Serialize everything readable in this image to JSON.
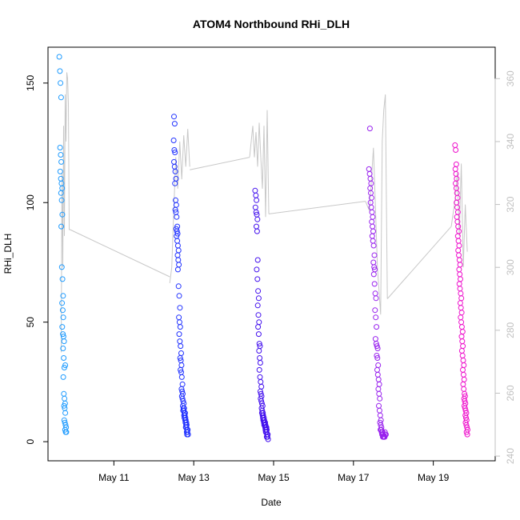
{
  "chart_data": {
    "type": "scatter",
    "title": "ATOM4 Northbound RHi_DLH",
    "xlabel": "Date",
    "ylabel": "RHi_DLH",
    "x_unit": "day of May",
    "xlim": [
      9.35,
      20.55
    ],
    "ylim": [
      -8,
      165
    ],
    "y2lim": [
      238.5,
      370
    ],
    "x_ticks": [
      {
        "value": 11,
        "label": "May 11"
      },
      {
        "value": 13,
        "label": "May 13"
      },
      {
        "value": 15,
        "label": "May 15"
      },
      {
        "value": 17,
        "label": "May 17"
      },
      {
        "value": 19,
        "label": "May 19"
      }
    ],
    "y_ticks": [
      {
        "value": 0,
        "label": "0"
      },
      {
        "value": 50,
        "label": "50"
      },
      {
        "value": 100,
        "label": "100"
      },
      {
        "value": 150,
        "label": "150"
      }
    ],
    "y2_ticks": [
      {
        "value": 240,
        "label": "240"
      },
      {
        "value": 260,
        "label": "260"
      },
      {
        "value": 280,
        "label": "280"
      },
      {
        "value": 300,
        "label": "300"
      },
      {
        "value": 320,
        "label": "320"
      },
      {
        "value": 340,
        "label": "340"
      },
      {
        "value": 360,
        "label": "360"
      }
    ],
    "grid": false,
    "legend": "none",
    "point_colors": [
      "#1e9bff",
      "#2233ff",
      "#4411ee",
      "#9922ee",
      "#ee11cc"
    ],
    "line_color": "#c8c8c8",
    "flights": [
      {
        "x_start": 9.65,
        "x_end": 9.8,
        "values": [
          161,
          155,
          150,
          144,
          123,
          120,
          117,
          113,
          110,
          108,
          106,
          104,
          101,
          95,
          90,
          73,
          68,
          61,
          58,
          55,
          52,
          48,
          45,
          44,
          42,
          39,
          35,
          31,
          27,
          20,
          18,
          16,
          15,
          14,
          12,
          9,
          8,
          7,
          6,
          5,
          4,
          4,
          32
        ]
      },
      {
        "x_start": 12.5,
        "x_end": 12.85,
        "values": [
          136,
          133,
          126,
          122,
          121,
          117,
          115,
          113,
          110,
          108,
          101,
          99,
          97,
          96,
          94,
          90,
          89,
          88,
          87,
          86,
          84,
          82,
          80,
          78,
          76,
          74,
          72,
          65,
          61,
          56,
          52,
          50,
          48,
          45,
          42,
          40,
          37,
          35,
          34,
          32,
          30,
          29,
          27,
          24,
          22,
          21,
          20,
          19,
          18,
          17,
          16,
          15,
          14,
          14,
          13,
          13,
          12,
          12,
          11,
          11,
          10,
          10,
          9,
          9,
          8,
          8,
          7,
          7,
          6,
          6,
          5,
          5,
          4,
          4,
          3,
          3
        ]
      },
      {
        "x_start": 14.55,
        "x_end": 14.85,
        "values": [
          105,
          103,
          101,
          98,
          96,
          95,
          93,
          90,
          88,
          76,
          72,
          68,
          63,
          60,
          57,
          53,
          50,
          48,
          45,
          41,
          40,
          38,
          35,
          33,
          30,
          27,
          25,
          23,
          21,
          20,
          19,
          18,
          17,
          16,
          15,
          14,
          13,
          12,
          12,
          11,
          11,
          10,
          10,
          9,
          9,
          9,
          8,
          8,
          8,
          7,
          7,
          7,
          7,
          6,
          6,
          6,
          5,
          5,
          5,
          4,
          4,
          3,
          3,
          2,
          2,
          1
        ]
      },
      {
        "x_start": 17.4,
        "x_end": 17.8,
        "values": [
          131,
          114,
          112,
          110,
          108,
          106,
          104,
          102,
          100,
          98,
          96,
          94,
          92,
          90,
          88,
          86,
          84,
          82,
          78,
          75,
          73,
          72,
          70,
          66,
          62,
          60,
          55,
          52,
          48,
          43,
          41,
          40,
          39,
          36,
          35,
          32,
          30,
          28,
          26,
          24,
          22,
          20,
          18,
          15,
          13,
          11,
          9,
          8,
          7,
          6,
          5,
          5,
          4,
          4,
          4,
          3,
          3,
          3,
          2,
          2,
          2,
          2,
          2,
          2,
          2,
          2,
          3,
          3,
          4
        ]
      },
      {
        "x_start": 19.55,
        "x_end": 19.85,
        "values": [
          124,
          122,
          116,
          114,
          112,
          110,
          108,
          106,
          104,
          102,
          100,
          98,
          96,
          94,
          92,
          90,
          88,
          86,
          84,
          82,
          80,
          78,
          76,
          74,
          72,
          70,
          68,
          66,
          64,
          62,
          60,
          58,
          56,
          54,
          52,
          50,
          48,
          46,
          44,
          42,
          40,
          38,
          36,
          34,
          32,
          30,
          28,
          26,
          24,
          22,
          20,
          19,
          18,
          17,
          16,
          15,
          14,
          13,
          12,
          11,
          10,
          9,
          8,
          7,
          6,
          5,
          4,
          3
        ]
      }
    ],
    "line_series": {
      "name": "",
      "axis": "right",
      "segments": [
        {
          "x": [
            9.68,
            9.7,
            9.72,
            9.74,
            9.76,
            9.78,
            9.8,
            9.82,
            9.84,
            9.86,
            9.88,
            9.9
          ],
          "y": [
            273,
            330,
            300,
            345,
            310,
            355,
            340,
            362,
            360,
            352,
            312,
            312
          ]
        },
        {
          "x": [
            9.9,
            12.4
          ],
          "y": [
            312,
            297
          ]
        },
        {
          "x": [
            12.4,
            12.45,
            12.5,
            12.55,
            12.6,
            12.65,
            12.7,
            12.75,
            12.8,
            12.85,
            12.9
          ],
          "y": [
            295,
            300,
            318,
            335,
            325,
            340,
            328,
            342,
            332,
            344,
            332
          ]
        },
        {
          "x": [
            12.9,
            14.4
          ],
          "y": [
            331,
            335
          ]
        },
        {
          "x": [
            14.4,
            14.44,
            14.48,
            14.52,
            14.56,
            14.6,
            14.64,
            14.68,
            14.72,
            14.76,
            14.8,
            14.84,
            14.88
          ],
          "y": [
            335,
            340,
            345,
            335,
            343,
            332,
            346,
            335,
            325,
            345,
            316,
            350,
            317
          ]
        },
        {
          "x": [
            14.88,
            17.3
          ],
          "y": [
            317,
            321
          ]
        },
        {
          "x": [
            17.3,
            17.4,
            17.5,
            17.6,
            17.68,
            17.72,
            17.76,
            17.8,
            17.85
          ],
          "y": [
            321,
            318,
            338,
            300,
            285,
            340,
            350,
            355,
            290
          ]
        },
        {
          "x": [
            17.85,
            19.45
          ],
          "y": [
            290,
            313
          ]
        },
        {
          "x": [
            19.45,
            19.55,
            19.6,
            19.65,
            19.7,
            19.75,
            19.8,
            19.85
          ],
          "y": [
            313,
            322,
            330,
            310,
            333,
            300,
            320,
            305
          ]
        }
      ]
    }
  }
}
